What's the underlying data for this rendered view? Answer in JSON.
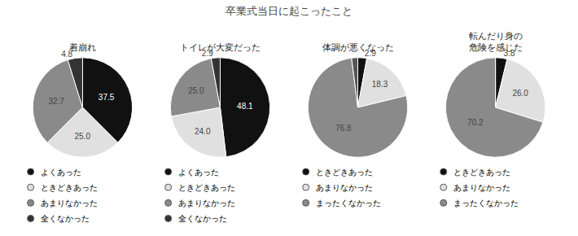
{
  "title": "卒業式当日に起こったこと",
  "chart_data": [
    {
      "type": "pie",
      "title": "着崩れ",
      "categories": [
        "よくあった",
        "ときどきあった",
        "あまりなかった",
        "全くなかった"
      ],
      "values": [
        37.5,
        25.0,
        32.7,
        4.8
      ],
      "value_labels": [
        "37.5",
        "25.0",
        "32.7",
        "4.8"
      ],
      "colors": [
        "#111111",
        "#e0e0e0",
        "#8a8a8a",
        "#333333"
      ],
      "data_labels": true
    },
    {
      "type": "pie",
      "title": "トイレが大変だった",
      "categories": [
        "よくあった",
        "ときどきあった",
        "あまりなかった",
        "全くなかった"
      ],
      "values": [
        48.1,
        24.0,
        25.0,
        2.9
      ],
      "value_labels": [
        "48.1",
        "24.0",
        "25.0",
        "2.9"
      ],
      "colors": [
        "#111111",
        "#e0e0e0",
        "#8a8a8a",
        "#333333"
      ],
      "data_labels": true
    },
    {
      "type": "pie",
      "title": "体調が悪くなった",
      "categories": [
        "ときどきあった",
        "あまりなかった",
        "まったくなかった",
        null
      ],
      "values": [
        2.9,
        18.3,
        76.8,
        2.0
      ],
      "value_labels": [
        "2.9",
        "18.3",
        "76.8",
        null
      ],
      "colors": [
        "#111111",
        "#e0e0e0",
        "#8a8a8a",
        "#555555"
      ],
      "data_labels": true
    },
    {
      "type": "pie",
      "title": "転んだり身の\n危険を感じた",
      "categories": [
        "ときどきあった",
        "あまりなかった",
        "まったくなかった",
        null
      ],
      "values": [
        3.8,
        26.0,
        70.2,
        0.0
      ],
      "value_labels": [
        "3.8",
        "26.0",
        "70.2",
        null
      ],
      "colors": [
        "#111111",
        "#e0e0e0",
        "#8a8a8a",
        "#555555"
      ],
      "data_labels": true
    }
  ]
}
